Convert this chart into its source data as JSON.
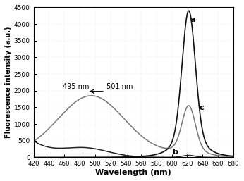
{
  "title": "",
  "xlabel": "Wavelength (nm)",
  "ylabel": "Fluorescence intensity (a.u.)",
  "xlim": [
    420,
    680
  ],
  "ylim": [
    0,
    4500
  ],
  "yticks": [
    0,
    500,
    1000,
    1500,
    2000,
    2500,
    3000,
    3500,
    4000,
    4500
  ],
  "xticks": [
    420,
    440,
    460,
    480,
    500,
    520,
    540,
    560,
    580,
    600,
    620,
    640,
    660,
    680
  ],
  "color_a": "#111111",
  "color_b": "#222222",
  "color_c": "#777777",
  "background_color": "#ffffff",
  "label_a": "a",
  "label_b": "b",
  "label_c": "c",
  "annot_text": "495 nm",
  "annot_arrow": "501 nm"
}
